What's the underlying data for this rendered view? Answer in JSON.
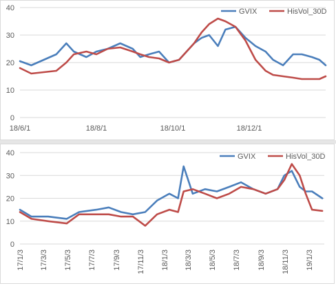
{
  "colors": {
    "gvix": "#4a7ebb",
    "hisvol": "#be4b48",
    "grid": "#d9d9d9",
    "tick": "#595959"
  },
  "chart_data": [
    {
      "type": "line",
      "title": "",
      "xlabel": "",
      "ylabel": "",
      "ylim": [
        0,
        40
      ],
      "yticks": [
        "0",
        "10",
        "20",
        "30",
        "40"
      ],
      "x_tick_labels": [
        "18/6/1",
        "18/8/1",
        "18/10/1",
        "18/12/1"
      ],
      "x_start": "2018-06-01",
      "x_end": "2019-01-31",
      "grid": true,
      "legend_position": "top-right",
      "legend": [
        "GVIX",
        "HisVol_30D"
      ],
      "series": [
        {
          "name": "GVIX",
          "x": [
            "2018-06-01",
            "2018-06-10",
            "2018-06-20",
            "2018-06-30",
            "2018-07-08",
            "2018-07-14",
            "2018-07-24",
            "2018-08-01",
            "2018-08-10",
            "2018-08-20",
            "2018-08-30",
            "2018-09-05",
            "2018-09-12",
            "2018-09-20",
            "2018-09-28",
            "2018-10-06",
            "2018-10-12",
            "2018-10-18",
            "2018-10-24",
            "2018-10-30",
            "2018-11-06",
            "2018-11-12",
            "2018-11-20",
            "2018-11-28",
            "2018-12-06",
            "2018-12-14",
            "2018-12-20",
            "2018-12-28",
            "2019-01-05",
            "2019-01-12",
            "2019-01-20",
            "2019-01-26",
            "2019-01-31"
          ],
          "values": [
            20.5,
            19,
            21,
            23,
            27,
            24,
            22,
            24,
            25,
            27,
            25,
            22,
            23,
            24,
            20,
            21,
            24,
            27,
            29,
            30,
            26,
            32,
            33,
            29,
            26,
            24,
            21,
            19,
            23,
            23,
            22,
            21,
            19
          ]
        },
        {
          "name": "HisVol_30D",
          "x": [
            "2018-06-01",
            "2018-06-10",
            "2018-06-20",
            "2018-06-30",
            "2018-07-08",
            "2018-07-14",
            "2018-07-24",
            "2018-08-01",
            "2018-08-10",
            "2018-08-20",
            "2018-08-30",
            "2018-09-05",
            "2018-09-12",
            "2018-09-20",
            "2018-09-28",
            "2018-10-06",
            "2018-10-12",
            "2018-10-18",
            "2018-10-24",
            "2018-10-30",
            "2018-11-06",
            "2018-11-12",
            "2018-11-20",
            "2018-11-28",
            "2018-12-06",
            "2018-12-14",
            "2018-12-20",
            "2018-12-28",
            "2019-01-05",
            "2019-01-12",
            "2019-01-20",
            "2019-01-26",
            "2019-01-31"
          ],
          "values": [
            18,
            16,
            16.5,
            17,
            20,
            23,
            24,
            23,
            25,
            25.5,
            24,
            23,
            22,
            21.5,
            20,
            21,
            24,
            27,
            31,
            34,
            36,
            35,
            33,
            28,
            21,
            17,
            15.5,
            15,
            14.5,
            14,
            14,
            14,
            15
          ]
        }
      ]
    },
    {
      "type": "line",
      "title": "",
      "xlabel": "",
      "ylabel": "",
      "ylim": [
        0,
        40
      ],
      "yticks": [
        "0",
        "10",
        "20",
        "30",
        "40"
      ],
      "x_tick_labels": [
        "17/1/3",
        "17/3/3",
        "17/5/3",
        "17/7/3",
        "17/9/3",
        "17/11/3",
        "18/1/3",
        "18/3/3",
        "18/5/3",
        "18/7/3",
        "18/9/3",
        "18/11/3",
        "19/1/3"
      ],
      "x_start": "2017-01-03",
      "x_end": "2019-02-10",
      "grid": true,
      "legend_position": "top-right",
      "legend": [
        "GVIX",
        "HisVol_30D"
      ],
      "series": [
        {
          "name": "GVIX",
          "x": [
            "2017-01-03",
            "2017-02-01",
            "2017-03-15",
            "2017-05-01",
            "2017-06-01",
            "2017-07-15",
            "2017-08-15",
            "2017-09-15",
            "2017-10-15",
            "2017-11-15",
            "2017-12-15",
            "2018-01-15",
            "2018-02-06",
            "2018-02-20",
            "2018-03-15",
            "2018-04-15",
            "2018-05-15",
            "2018-06-15",
            "2018-07-15",
            "2018-08-15",
            "2018-09-15",
            "2018-10-15",
            "2018-11-01",
            "2018-11-20",
            "2018-12-10",
            "2018-12-25",
            "2019-01-10",
            "2019-02-05"
          ],
          "values": [
            15,
            12,
            12,
            11,
            14,
            15,
            16,
            14,
            13,
            14,
            19,
            22,
            20,
            34,
            22,
            24,
            23,
            25,
            27,
            24,
            22,
            24,
            30,
            32,
            25,
            23,
            23,
            20
          ]
        },
        {
          "name": "HisVol_30D",
          "x": [
            "2017-01-03",
            "2017-02-01",
            "2017-03-15",
            "2017-05-01",
            "2017-06-01",
            "2017-07-15",
            "2017-08-15",
            "2017-09-15",
            "2017-10-15",
            "2017-11-15",
            "2017-12-15",
            "2018-01-15",
            "2018-02-06",
            "2018-02-20",
            "2018-03-15",
            "2018-04-15",
            "2018-05-15",
            "2018-06-15",
            "2018-07-15",
            "2018-08-15",
            "2018-09-15",
            "2018-10-15",
            "2018-11-01",
            "2018-11-20",
            "2018-12-10",
            "2018-12-25",
            "2019-01-10",
            "2019-02-05"
          ],
          "values": [
            14,
            11,
            10,
            9,
            13,
            13,
            13,
            12,
            12,
            8,
            13,
            15,
            14,
            23,
            24,
            22,
            20,
            22,
            25,
            24,
            22,
            24,
            28,
            35,
            30,
            22,
            15,
            14.5
          ]
        }
      ]
    }
  ]
}
